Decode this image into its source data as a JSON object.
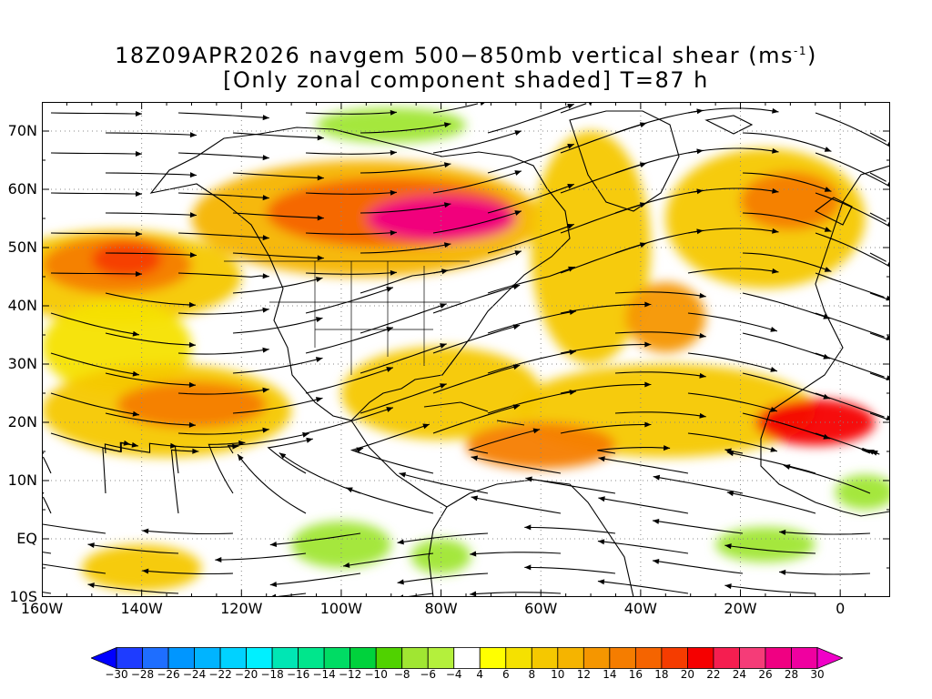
{
  "title": {
    "line1_prefix": "18Z09APR2026 navgem 500−850mb vertical shear (ms",
    "line1_sup": "-1",
    "line1_suffix": ")",
    "line2": "[Only zonal component shaded] T=87 h"
  },
  "map": {
    "lon_range": [
      -160,
      10
    ],
    "lat_range": [
      -10,
      75
    ],
    "x_tick_labels": [
      {
        "lon": -160,
        "label": "160W"
      },
      {
        "lon": -140,
        "label": "140W"
      },
      {
        "lon": -120,
        "label": "120W"
      },
      {
        "lon": -100,
        "label": "100W"
      },
      {
        "lon": -80,
        "label": "80W"
      },
      {
        "lon": -60,
        "label": "60W"
      },
      {
        "lon": -40,
        "label": "40W"
      },
      {
        "lon": -20,
        "label": "20W"
      },
      {
        "lon": 0,
        "label": "0"
      }
    ],
    "y_tick_labels": [
      {
        "lat": 70,
        "label": "70N"
      },
      {
        "lat": 60,
        "label": "60N"
      },
      {
        "lat": 50,
        "label": "50N"
      },
      {
        "lat": 40,
        "label": "40N"
      },
      {
        "lat": 30,
        "label": "30N"
      },
      {
        "lat": 20,
        "label": "20N"
      },
      {
        "lat": 10,
        "label": "10N"
      },
      {
        "lat": 0,
        "label": "EQ"
      },
      {
        "lat": -10,
        "label": "10S"
      }
    ],
    "grid": "dotted",
    "shaded_regions": [
      {
        "level": 8,
        "lon": -145,
        "lat": 45,
        "rlon": 25,
        "rlat": 8
      },
      {
        "level": 14,
        "lon": -145,
        "lat": 47,
        "rlon": 15,
        "rlat": 5
      },
      {
        "level": 18,
        "lon": -143,
        "lat": 48,
        "rlon": 7,
        "rlat": 3
      },
      {
        "level": 10,
        "lon": -95,
        "lat": 55,
        "rlon": 35,
        "rlat": 10
      },
      {
        "level": 16,
        "lon": -90,
        "lat": 56,
        "rlon": 25,
        "rlat": 6
      },
      {
        "level": 26,
        "lon": -80,
        "lat": 55,
        "rlon": 15,
        "rlat": 4
      },
      {
        "level": 8,
        "lon": -50,
        "lat": 50,
        "rlon": 12,
        "rlat": 20
      },
      {
        "level": 12,
        "lon": -35,
        "lat": 38,
        "rlon": 8,
        "rlat": 6
      },
      {
        "level": 8,
        "lon": -15,
        "lat": 55,
        "rlon": 20,
        "rlat": 12
      },
      {
        "level": 14,
        "lon": -10,
        "lat": 58,
        "rlon": 10,
        "rlat": 5
      },
      {
        "level": 6,
        "lon": -145,
        "lat": 33,
        "rlon": 15,
        "rlat": 8
      },
      {
        "level": 8,
        "lon": -135,
        "lat": 22,
        "rlon": 25,
        "rlat": 8
      },
      {
        "level": 14,
        "lon": -130,
        "lat": 23,
        "rlon": 15,
        "rlat": 4
      },
      {
        "level": 8,
        "lon": -80,
        "lat": 25,
        "rlon": 20,
        "rlat": 8
      },
      {
        "level": 8,
        "lon": -35,
        "lat": 22,
        "rlon": 30,
        "rlat": 8
      },
      {
        "level": 14,
        "lon": -60,
        "lat": 16,
        "rlon": 15,
        "rlat": 4
      },
      {
        "level": 20,
        "lon": -5,
        "lat": 20,
        "rlon": 12,
        "rlat": 4
      },
      {
        "level": 8,
        "lon": -140,
        "lat": -5,
        "rlon": 12,
        "rlat": 4
      },
      {
        "level": -8,
        "lon": -100,
        "lat": -1,
        "rlon": 10,
        "rlat": 4
      },
      {
        "level": -8,
        "lon": -80,
        "lat": -3,
        "rlon": 6,
        "rlat": 3
      },
      {
        "level": -8,
        "lon": -15,
        "lat": -1,
        "rlon": 10,
        "rlat": 3
      },
      {
        "level": -8,
        "lon": 5,
        "lat": 8,
        "rlon": 6,
        "rlat": 3
      },
      {
        "level": -8,
        "lon": -90,
        "lat": 71,
        "rlon": 15,
        "rlat": 3
      }
    ]
  },
  "colorbar": {
    "labels": [
      "-30",
      "-28",
      "-26",
      "-24",
      "-22",
      "-20",
      "-18",
      "-16",
      "-14",
      "-12",
      "-10",
      "-8",
      "-6",
      "-4",
      "4",
      "6",
      "8",
      "10",
      "12",
      "14",
      "16",
      "18",
      "20",
      "22",
      "24",
      "26",
      "28",
      "30"
    ],
    "colors": [
      "#0000ff",
      "#1e3cff",
      "#1e6eff",
      "#0096ff",
      "#00b4ff",
      "#00d2ff",
      "#00f0ff",
      "#00e6b4",
      "#00e68c",
      "#00dc64",
      "#00d23c",
      "#50d200",
      "#a0e632",
      "#b4f03c",
      "#ffffff",
      "#ffff00",
      "#f5e100",
      "#f5c800",
      "#f5b400",
      "#f59600",
      "#f57d00",
      "#f56400",
      "#f53c00",
      "#f50000",
      "#f51e50",
      "#f53c78",
      "#f00082",
      "#f000a0",
      "#f000c8"
    ]
  }
}
